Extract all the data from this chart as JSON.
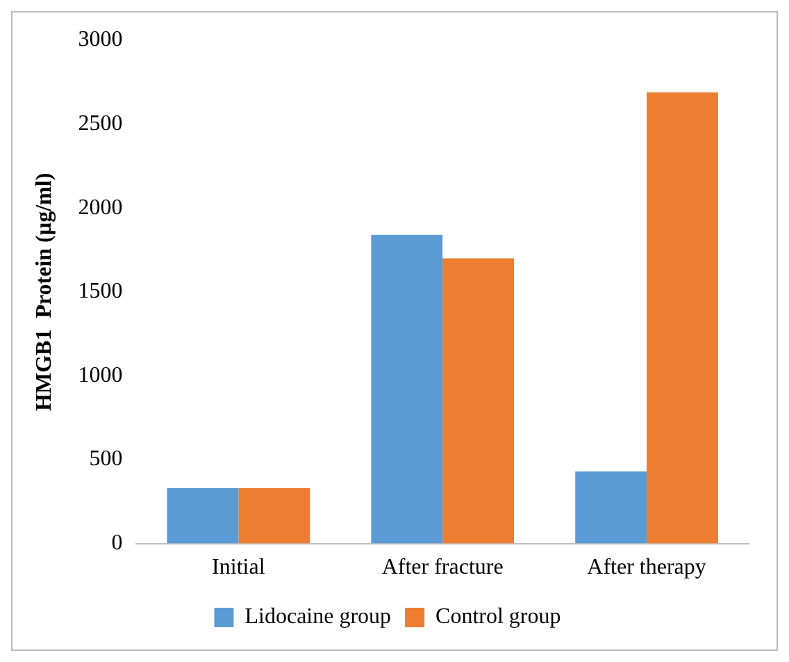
{
  "chart_data": {
    "type": "bar",
    "ylabel": "HMGB1  Protein (µg/ml)",
    "categories": [
      "Initial",
      "After fracture",
      "After therapy"
    ],
    "series": [
      {
        "name": "Lidocaine group",
        "color": "#5b9bd5",
        "values": [
          330,
          1840,
          430
        ]
      },
      {
        "name": "Control group",
        "color": "#ed7d31",
        "values": [
          330,
          1700,
          2690
        ]
      }
    ],
    "ylim": [
      0,
      3000
    ],
    "yticks": [
      0,
      500,
      1000,
      1500,
      2000,
      2500,
      3000
    ],
    "grid": false,
    "legend": "bottom"
  }
}
